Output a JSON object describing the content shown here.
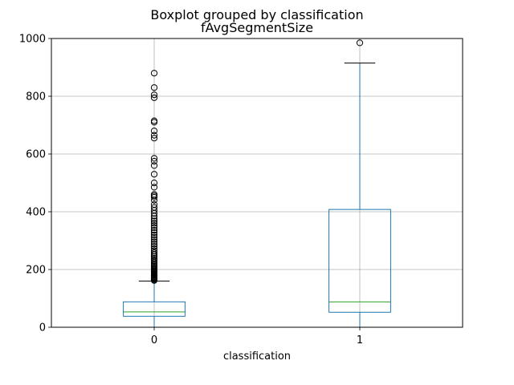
{
  "chart_data": {
    "type": "box",
    "title": "Boxplot grouped by classification",
    "subtitle": "fAvgSegmentSize",
    "xlabel": "classification",
    "ylabel": "",
    "ylim": [
      0,
      1000
    ],
    "yticks": [
      0,
      200,
      400,
      600,
      800,
      1000
    ],
    "grid": true,
    "categories": [
      "0",
      "1"
    ],
    "boxes": [
      {
        "category": "0",
        "q1": 38,
        "median": 53,
        "q3": 88,
        "whisker_low": 0,
        "whisker_high": 160,
        "outliers": [
          162,
          165,
          168,
          170,
          172,
          175,
          178,
          180,
          183,
          186,
          190,
          193,
          196,
          200,
          204,
          208,
          212,
          216,
          220,
          225,
          230,
          235,
          240,
          246,
          252,
          258,
          265,
          272,
          280,
          288,
          296,
          304,
          312,
          320,
          328,
          336,
          345,
          352,
          360,
          368,
          376,
          385,
          395,
          405,
          415,
          425,
          440,
          450,
          455,
          460,
          485,
          500,
          530,
          560,
          575,
          585,
          655,
          665,
          680,
          710,
          715,
          795,
          805,
          830,
          880
        ]
      },
      {
        "category": "1",
        "q1": 52,
        "median": 88,
        "q3": 408,
        "whisker_low": 0,
        "whisker_high": 915,
        "outliers": [
          985
        ]
      }
    ],
    "colors": {
      "box": "#1f77b4",
      "median": "#2ca02c",
      "grid": "#b0b0b0",
      "outlier": "#000000"
    }
  }
}
